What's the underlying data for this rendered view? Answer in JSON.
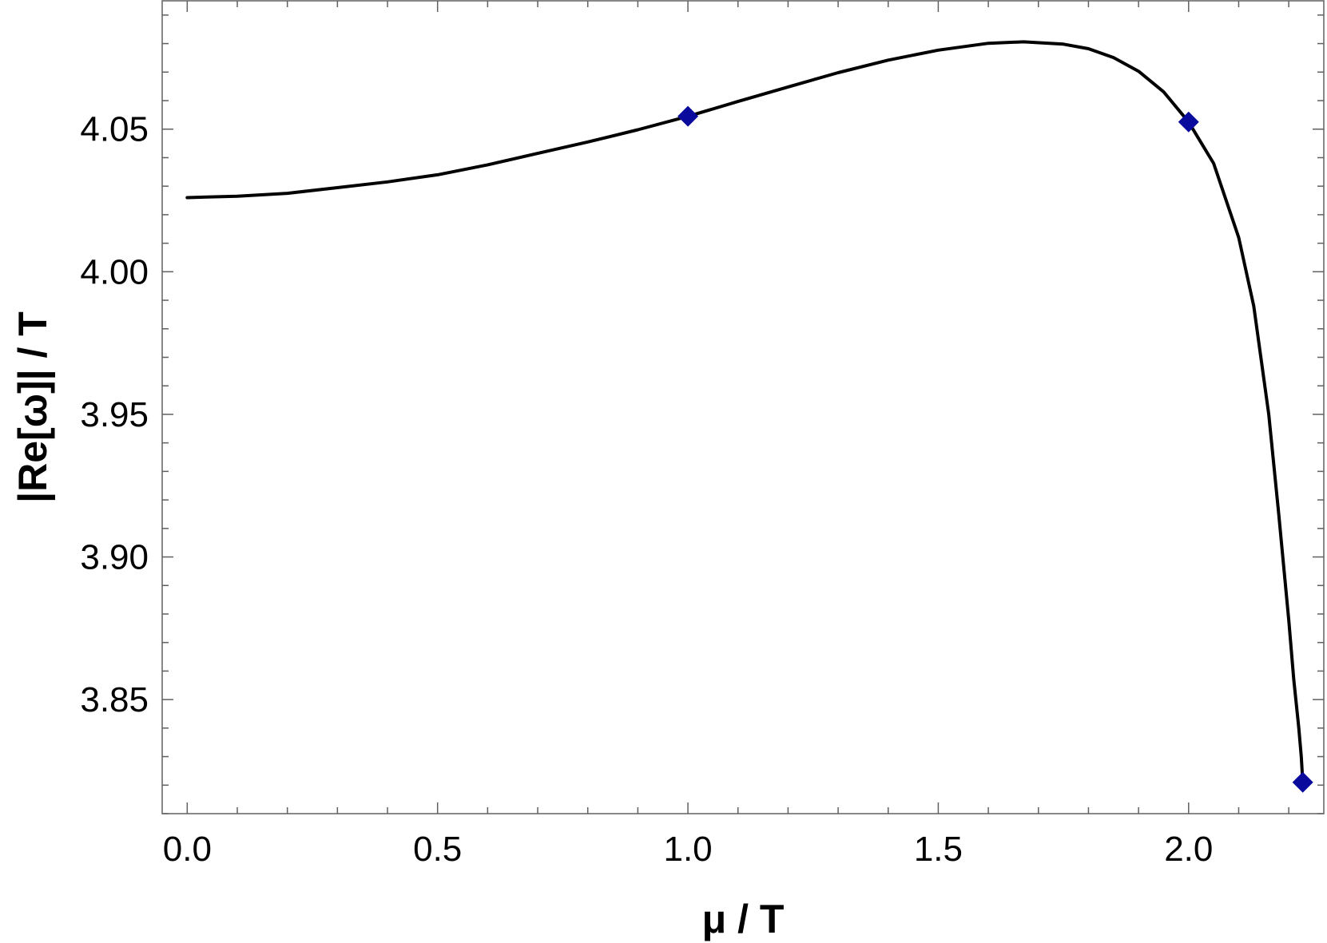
{
  "chart_data": {
    "type": "line",
    "title": "",
    "xlabel": "μ / T",
    "ylabel": "|Re[ω]| / T",
    "xlim": [
      -0.05,
      2.27
    ],
    "ylim": [
      3.81,
      4.095
    ],
    "x_ticks": [
      0.0,
      0.5,
      1.0,
      1.5,
      2.0
    ],
    "x_tick_labels": [
      "0.0",
      "0.5",
      "1.0",
      "1.5",
      "2.0"
    ],
    "y_ticks": [
      3.85,
      3.9,
      3.95,
      4.0,
      4.05
    ],
    "y_tick_labels": [
      "3.85",
      "3.90",
      "3.95",
      "4.00",
      "4.05"
    ],
    "x_minor_step": 0.1,
    "y_minor_step": 0.01,
    "grid": false,
    "frame": "full box",
    "series": [
      {
        "kind": "line",
        "color": "#000000",
        "x": [
          0.0,
          0.1,
          0.2,
          0.3,
          0.4,
          0.5,
          0.6,
          0.7,
          0.8,
          0.9,
          1.0,
          1.1,
          1.2,
          1.3,
          1.4,
          1.5,
          1.6,
          1.67,
          1.75,
          1.8,
          1.85,
          1.9,
          1.95,
          2.0,
          2.05,
          2.1,
          2.13,
          2.16,
          2.18,
          2.2,
          2.21,
          2.22,
          2.225,
          2.228
        ],
        "y": [
          4.026,
          4.0265,
          4.0275,
          4.0295,
          4.0315,
          4.034,
          4.0375,
          4.0415,
          4.0455,
          4.0498,
          4.0545,
          4.0597,
          4.0648,
          4.0698,
          4.0742,
          4.0777,
          4.0801,
          4.0806,
          4.0798,
          4.0782,
          4.0751,
          4.0703,
          4.0631,
          4.0525,
          4.038,
          4.012,
          3.988,
          3.95,
          3.915,
          3.878,
          3.857,
          3.84,
          3.83,
          3.821
        ]
      },
      {
        "kind": "points",
        "marker": "diamond",
        "color": "#0a0a9c",
        "x": [
          1.0,
          2.0,
          2.228
        ],
        "y": [
          4.0545,
          4.0525,
          3.821
        ]
      }
    ],
    "colors": {
      "axis": "#606060",
      "line": "#000000",
      "marker": "#0a0a9c"
    }
  }
}
